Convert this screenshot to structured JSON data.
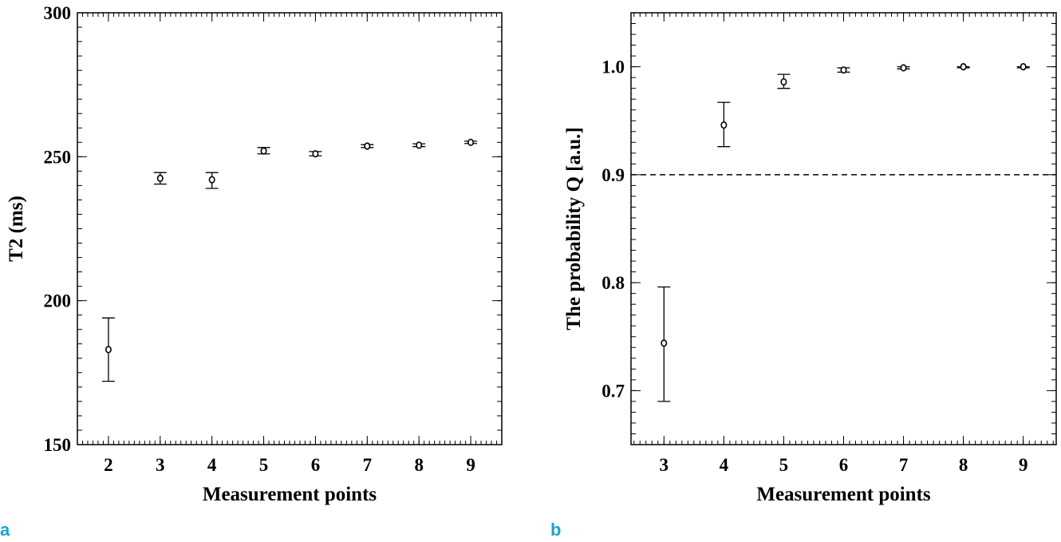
{
  "chart_data": [
    {
      "type": "scatter",
      "panel_label": "a",
      "xlabel": "Measurement points",
      "ylabel": "T2 (ms)",
      "xlim": [
        1.4,
        9.6
      ],
      "ylim": [
        150,
        300
      ],
      "xticks": [
        "2",
        "3",
        "4",
        "5",
        "6",
        "7",
        "8",
        "9"
      ],
      "yticks": [
        "150",
        "200",
        "250",
        "300"
      ],
      "error_bars": true,
      "series": [
        {
          "x": [
            2,
            3,
            4,
            5,
            6,
            7,
            8,
            9
          ],
          "y": [
            183,
            242.5,
            242,
            252,
            251,
            253.7,
            254,
            255
          ],
          "err_low": [
            172,
            240.5,
            239,
            251,
            250.3,
            253.2,
            253.5,
            254.6
          ],
          "err_high": [
            194,
            244.5,
            244.5,
            253.2,
            251.8,
            254.2,
            254.5,
            255.4
          ]
        }
      ]
    },
    {
      "type": "scatter",
      "panel_label": "b",
      "xlabel": "Measurement points",
      "ylabel": "The probability Q [a.u.]",
      "xlim": [
        2.45,
        9.55
      ],
      "ylim": [
        0.65,
        1.05
      ],
      "xticks": [
        "3",
        "4",
        "5",
        "6",
        "7",
        "8",
        "9"
      ],
      "yticks": [
        "0.7",
        "0.8",
        "0.9",
        "1.0"
      ],
      "error_bars": true,
      "reference_line": {
        "y": 0.9,
        "style": "dashed"
      },
      "series": [
        {
          "x": [
            3,
            4,
            5,
            6,
            7,
            8,
            9
          ],
          "y": [
            0.744,
            0.946,
            0.986,
            0.997,
            0.999,
            1.0,
            1.0
          ],
          "err_low": [
            0.69,
            0.926,
            0.98,
            0.995,
            0.998,
            0.999,
            0.999
          ],
          "err_high": [
            0.796,
            0.967,
            0.993,
            0.999,
            1.0,
            1.0,
            1.0
          ]
        }
      ]
    }
  ]
}
